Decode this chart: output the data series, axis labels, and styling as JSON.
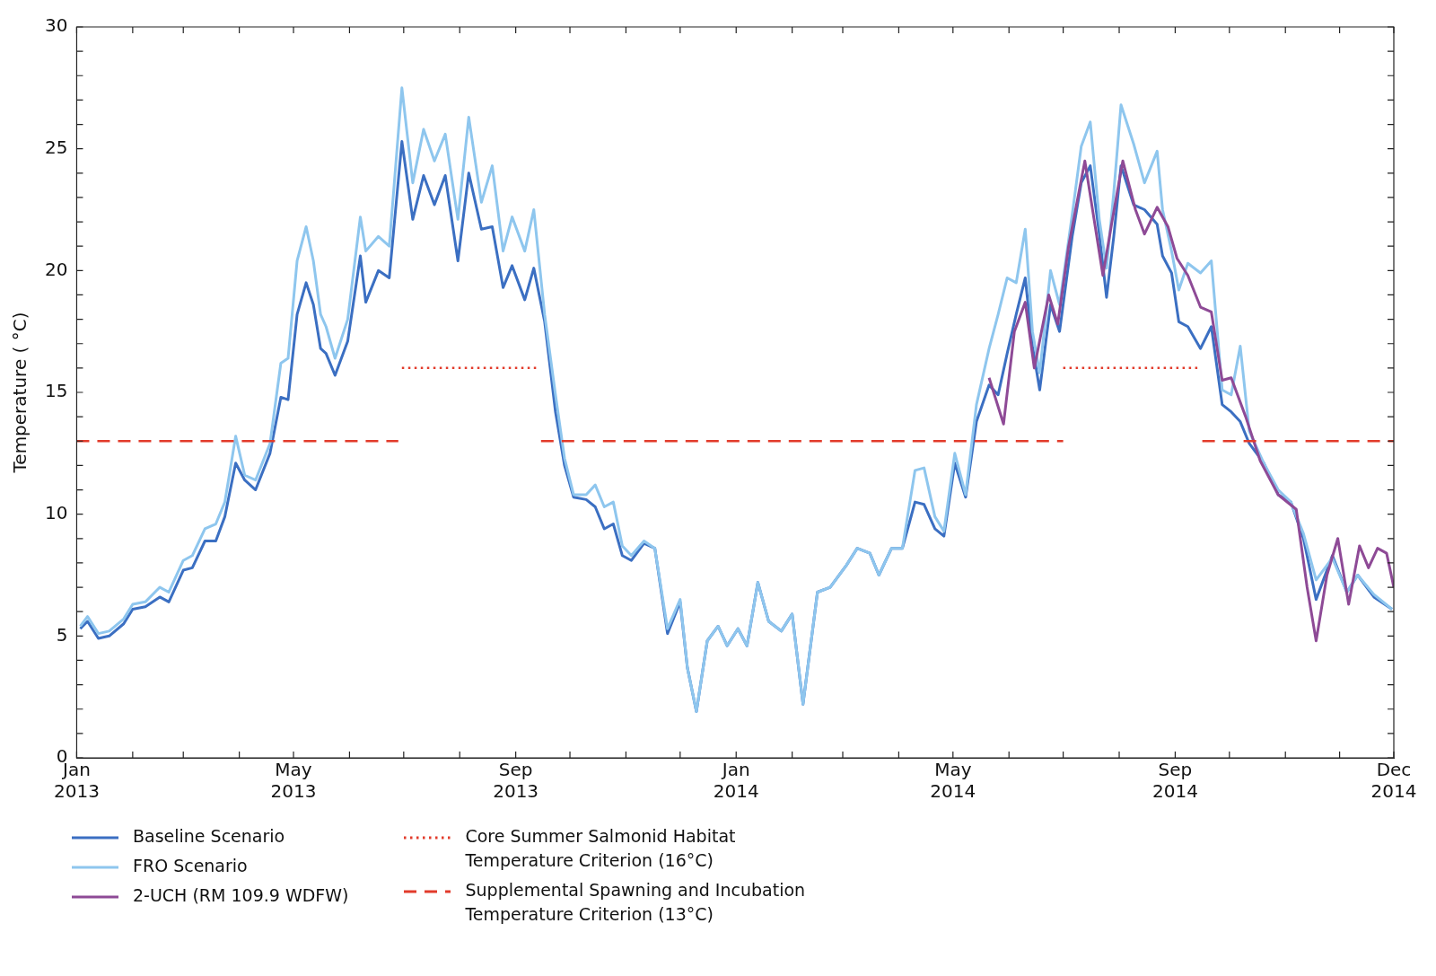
{
  "chart_data": {
    "type": "line",
    "ylabel": "Temperature ( °C)",
    "legend": "bottom",
    "xlim": [
      "2013-01-01",
      "2014-12-31"
    ],
    "xticks": [
      {
        "value": "2013-01-01",
        "label": "Jan 2013"
      },
      {
        "value": "2013-02-01",
        "label": null
      },
      {
        "value": "2013-03-01",
        "label": null
      },
      {
        "value": "2013-04-01",
        "label": null
      },
      {
        "value": "2013-05-01",
        "label": "May 2013"
      },
      {
        "value": "2013-06-01",
        "label": null
      },
      {
        "value": "2013-07-01",
        "label": null
      },
      {
        "value": "2013-08-01",
        "label": null
      },
      {
        "value": "2013-09-01",
        "label": "Sep 2013"
      },
      {
        "value": "2013-10-01",
        "label": null
      },
      {
        "value": "2013-11-01",
        "label": null
      },
      {
        "value": "2013-12-01",
        "label": null
      },
      {
        "value": "2014-01-01",
        "label": "Jan 2014"
      },
      {
        "value": "2014-02-01",
        "label": null
      },
      {
        "value": "2014-03-01",
        "label": null
      },
      {
        "value": "2014-04-01",
        "label": null
      },
      {
        "value": "2014-05-01",
        "label": "May 2014"
      },
      {
        "value": "2014-06-01",
        "label": null
      },
      {
        "value": "2014-07-01",
        "label": null
      },
      {
        "value": "2014-08-01",
        "label": null
      },
      {
        "value": "2014-09-01",
        "label": "Sep 2014"
      },
      {
        "value": "2014-10-01",
        "label": null
      },
      {
        "value": "2014-11-01",
        "label": null
      },
      {
        "value": "2014-12-01",
        "label": null
      },
      {
        "value": "2014-12-31",
        "label": "Dec 2014"
      }
    ],
    "ylim": [
      0,
      30
    ],
    "yticks": [
      0,
      {
        "value": 1,
        "label": null
      },
      {
        "value": 2,
        "label": null
      },
      {
        "value": 3,
        "label": null
      },
      {
        "value": 4,
        "label": null
      },
      5,
      {
        "value": 6,
        "label": null
      },
      {
        "value": 7,
        "label": null
      },
      {
        "value": 8,
        "label": null
      },
      {
        "value": 9,
        "label": null
      },
      10,
      {
        "value": 11,
        "label": null
      },
      {
        "value": 12,
        "label": null
      },
      {
        "value": 13,
        "label": null
      },
      {
        "value": 14,
        "label": null
      },
      15,
      {
        "value": 16,
        "label": null
      },
      {
        "value": 17,
        "label": null
      },
      {
        "value": 18,
        "label": null
      },
      {
        "value": 19,
        "label": null
      },
      20,
      {
        "value": 21,
        "label": null
      },
      {
        "value": 22,
        "label": null
      },
      {
        "value": 23,
        "label": null
      },
      {
        "value": 24,
        "label": null
      },
      25,
      {
        "value": 26,
        "label": null
      },
      {
        "value": 27,
        "label": null
      },
      {
        "value": 28,
        "label": null
      },
      {
        "value": 29,
        "label": null
      },
      30
    ],
    "x": [
      "2013-01-03",
      "2013-01-07",
      "2013-01-13",
      "2013-01-19",
      "2013-01-27",
      "2013-02-01",
      "2013-02-08",
      "2013-02-16",
      "2013-02-21",
      "2013-03-01",
      "2013-03-06",
      "2013-03-13",
      "2013-03-19",
      "2013-03-24",
      "2013-03-30",
      "2013-04-04",
      "2013-04-10",
      "2013-04-18",
      "2013-04-24",
      "2013-04-28",
      "2013-05-03",
      "2013-05-08",
      "2013-05-12",
      "2013-05-16",
      "2013-05-19",
      "2013-05-24",
      "2013-05-31",
      "2013-06-07",
      "2013-06-10",
      "2013-06-17",
      "2013-06-23",
      "2013-06-30",
      "2013-07-06",
      "2013-07-12",
      "2013-07-18",
      "2013-07-24",
      "2013-07-31",
      "2013-08-06",
      "2013-08-13",
      "2013-08-19",
      "2013-08-25",
      "2013-08-30",
      "2013-09-06",
      "2013-09-11",
      "2013-09-17",
      "2013-09-23",
      "2013-09-28",
      "2013-10-03",
      "2013-10-10",
      "2013-10-15",
      "2013-10-20",
      "2013-10-25",
      "2013-10-30",
      "2013-11-04",
      "2013-11-11",
      "2013-11-17",
      "2013-11-24",
      "2013-12-01",
      "2013-12-05",
      "2013-12-10",
      "2013-12-16",
      "2013-12-22",
      "2013-12-27",
      "2014-01-02",
      "2014-01-07",
      "2014-01-13",
      "2014-01-19",
      "2014-01-26",
      "2014-02-01",
      "2014-02-07",
      "2014-02-15",
      "2014-02-22",
      "2014-03-03",
      "2014-03-09",
      "2014-03-16",
      "2014-03-21",
      "2014-03-28",
      "2014-04-03",
      "2014-04-10",
      "2014-04-15",
      "2014-04-21",
      "2014-04-26",
      "2014-05-02",
      "2014-05-08",
      "2014-05-14",
      "2014-05-21",
      "2014-05-26",
      "2014-05-31",
      "2014-06-05",
      "2014-06-10",
      "2014-06-14",
      "2014-06-18",
      "2014-06-24",
      "2014-06-29",
      "2014-07-06",
      "2014-07-11",
      "2014-07-16",
      "2014-07-21",
      "2014-07-25",
      "2014-07-29",
      "2014-08-02",
      "2014-08-09",
      "2014-08-15",
      "2014-08-22",
      "2014-08-25",
      "2014-08-30",
      "2014-09-03",
      "2014-09-08",
      "2014-09-15",
      "2014-09-21",
      "2014-09-27",
      "2014-10-02",
      "2014-10-07",
      "2014-10-12",
      "2014-10-20",
      "2014-10-28",
      "2014-11-04",
      "2014-11-11",
      "2014-11-18",
      "2014-11-27",
      "2014-12-05",
      "2014-12-11",
      "2014-12-20",
      "2014-12-30"
    ],
    "series": [
      {
        "name": "Baseline Scenario",
        "color": "#3b6fc2",
        "line_style": "solid",
        "values": [
          5.3,
          5.6,
          4.9,
          5.0,
          5.5,
          6.1,
          6.2,
          6.6,
          6.4,
          7.7,
          7.8,
          8.9,
          8.9,
          9.9,
          12.1,
          11.4,
          11.0,
          12.5,
          14.8,
          14.7,
          18.2,
          19.5,
          18.6,
          16.8,
          16.6,
          15.7,
          17.1,
          20.6,
          18.7,
          20.0,
          19.7,
          25.3,
          22.1,
          23.9,
          22.7,
          23.9,
          20.4,
          24.0,
          21.7,
          21.8,
          19.3,
          20.2,
          18.8,
          20.1,
          17.9,
          14.2,
          12.0,
          10.7,
          10.6,
          10.3,
          9.4,
          9.6,
          8.3,
          8.1,
          8.8,
          8.6,
          5.1,
          6.4,
          3.7,
          1.9,
          4.8,
          5.4,
          4.6,
          5.3,
          4.6,
          7.2,
          5.6,
          5.2,
          5.9,
          2.2,
          6.8,
          7.0,
          7.9,
          8.6,
          8.4,
          7.5,
          8.6,
          8.6,
          10.5,
          10.4,
          9.4,
          9.1,
          12.1,
          10.7,
          13.8,
          15.3,
          14.9,
          16.6,
          18.2,
          19.7,
          16.9,
          15.1,
          18.6,
          17.5,
          21.4,
          23.6,
          24.3,
          21.5,
          18.9,
          21.4,
          24.3,
          22.7,
          22.5,
          21.9,
          20.6,
          19.9,
          17.9,
          17.7,
          16.8,
          17.7,
          14.5,
          14.2,
          13.8,
          12.9,
          12.1,
          10.8,
          10.5,
          9.0,
          6.5,
          8.3,
          6.8,
          7.5,
          6.6,
          6.1
        ]
      },
      {
        "name": "FRO Scenario",
        "color": "#8ec6ee",
        "line_style": "solid",
        "values": [
          5.4,
          5.8,
          5.1,
          5.2,
          5.7,
          6.3,
          6.4,
          7.0,
          6.8,
          8.1,
          8.3,
          9.4,
          9.6,
          10.5,
          13.2,
          11.6,
          11.4,
          12.9,
          16.2,
          16.4,
          20.4,
          21.8,
          20.4,
          18.2,
          17.7,
          16.4,
          18.0,
          22.2,
          20.8,
          21.4,
          21.0,
          27.5,
          23.6,
          25.8,
          24.5,
          25.6,
          22.1,
          26.3,
          22.8,
          24.3,
          20.8,
          22.2,
          20.8,
          22.5,
          18.2,
          14.9,
          12.3,
          10.8,
          10.8,
          11.2,
          10.3,
          10.5,
          8.7,
          8.3,
          8.9,
          8.6,
          5.3,
          6.5,
          3.7,
          1.9,
          4.8,
          5.4,
          4.6,
          5.3,
          4.6,
          7.2,
          5.6,
          5.2,
          5.9,
          2.2,
          6.8,
          7.0,
          7.9,
          8.6,
          8.4,
          7.5,
          8.6,
          8.6,
          11.8,
          11.9,
          9.9,
          9.3,
          12.5,
          10.8,
          14.5,
          16.8,
          18.2,
          19.7,
          19.5,
          21.7,
          17.5,
          15.8,
          20.0,
          18.6,
          22.3,
          25.1,
          26.1,
          22.1,
          20.1,
          23.2,
          26.8,
          25.2,
          23.6,
          24.9,
          22.5,
          20.8,
          19.2,
          20.3,
          19.9,
          20.4,
          15.1,
          14.9,
          16.9,
          13.4,
          12.1,
          11.0,
          10.5,
          9.2,
          7.3,
          8.2,
          6.8,
          7.5,
          6.7,
          6.1
        ]
      },
      {
        "name": "2-UCH (RM 109.9 WDFW)",
        "color": "#8e4a96",
        "line_style": "solid",
        "x": [
          "2014-05-21",
          "2014-05-29",
          "2014-06-04",
          "2014-06-10",
          "2014-06-15",
          "2014-06-23",
          "2014-06-28",
          "2014-07-04",
          "2014-07-13",
          "2014-07-23",
          "2014-07-28",
          "2014-08-03",
          "2014-08-10",
          "2014-08-15",
          "2014-08-22",
          "2014-08-28",
          "2014-09-02",
          "2014-09-08",
          "2014-09-15",
          "2014-09-21",
          "2014-09-27",
          "2014-10-02",
          "2014-10-10",
          "2014-10-18",
          "2014-10-28",
          "2014-11-07",
          "2014-11-13",
          "2014-11-18",
          "2014-11-24",
          "2014-11-30",
          "2014-12-06",
          "2014-12-12",
          "2014-12-17",
          "2014-12-22",
          "2014-12-27",
          "2014-12-31"
        ],
        "values": [
          15.6,
          13.7,
          17.5,
          18.7,
          16.0,
          19.0,
          17.8,
          21.0,
          24.5,
          19.8,
          22.0,
          24.5,
          22.5,
          21.5,
          22.6,
          21.8,
          20.5,
          19.8,
          18.5,
          18.3,
          15.5,
          15.6,
          14.0,
          12.2,
          10.8,
          10.2,
          7.0,
          4.8,
          7.5,
          9.0,
          6.3,
          8.7,
          7.8,
          8.6,
          8.4,
          7.0
        ]
      },
      {
        "name": "Core Summer Salmonid Habitat Temperature Criterion (16°C)",
        "color": "#e23b2b",
        "line_style": "dotted",
        "x": [
          "2013-06-30",
          "2013-09-13",
          "2013-11-01",
          "2014-07-01",
          "2014-09-15"
        ],
        "values": [
          16,
          16,
          null,
          16,
          16
        ]
      },
      {
        "name": "Supplemental Spawning and Incubation Temperature Criterion (13°C)",
        "color": "#e23b2b",
        "line_style": "dashed",
        "x": [
          "2013-01-01",
          "2013-06-28",
          "2013-08-01",
          "2013-09-15",
          "2014-07-01",
          "2014-08-01",
          "2014-09-16",
          "2014-12-31"
        ],
        "values": [
          13,
          13,
          null,
          13,
          13,
          null,
          13,
          13
        ]
      }
    ]
  }
}
